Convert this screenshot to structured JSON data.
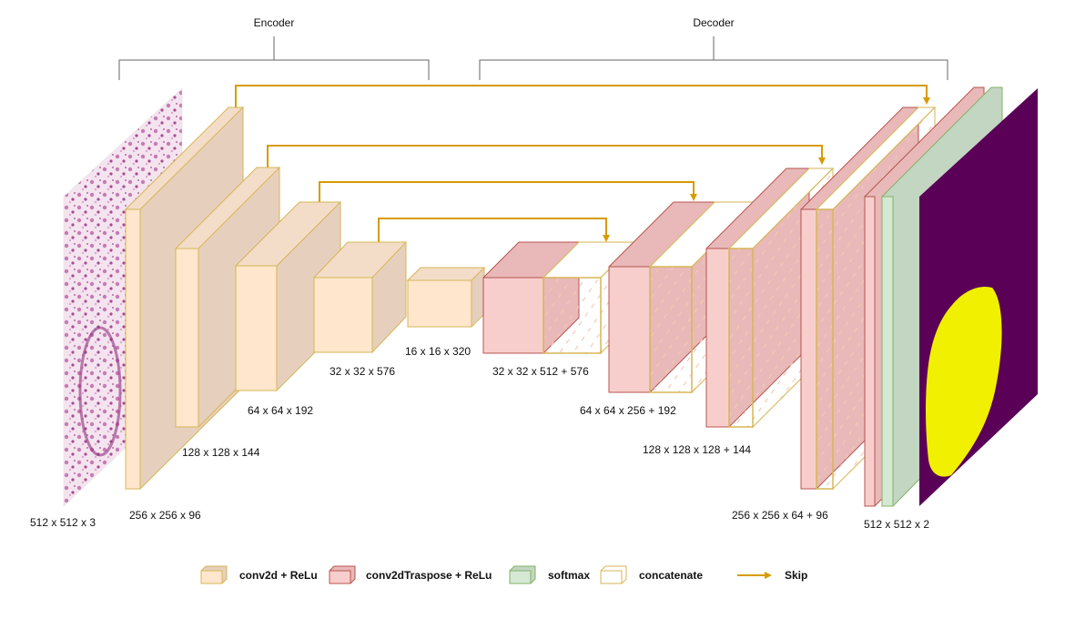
{
  "diagram": {
    "sections": {
      "encoder": "Encoder",
      "decoder": "Decoder"
    },
    "colors": {
      "conv_front": "#ffe6cc",
      "conv_side": "#e6d0bd",
      "conv_stroke": "#d6b656",
      "deconv_front": "#f8cecc",
      "deconv_side": "#e8b9b8",
      "deconv_stroke": "#b85450",
      "softmax_front": "#d5e8d4",
      "softmax_side": "#c3d6c2",
      "softmax_stroke": "#82b366",
      "skip_arrow": "#d79b00",
      "mask_bg": "#5a0057",
      "mask_fg": "#f0f000",
      "tissue": "#e8c4e0"
    },
    "shapes": {
      "input": "512 x 512 x 3",
      "enc1": "256 x 256 x 96",
      "enc2": "128 x 128 x 144",
      "enc3": "64 x 64 x 192",
      "enc4": "32 x 32 x 576",
      "bottleneck": "16 x 16 x 320",
      "dec1": "32 x 32 x 512 + 576",
      "dec2": "64 x 64 x 256 + 192",
      "dec3": "128 x 128 x 128 + 144",
      "dec4": "256 x 256 x 64 + 96",
      "output": "512 x 512 x 2"
    },
    "legend": {
      "conv": "conv2d  + ReLu",
      "deconv": "conv2dTraspose + ReLu",
      "softmax": "softmax",
      "concat": "concatenate",
      "skip": "Skip"
    }
  }
}
